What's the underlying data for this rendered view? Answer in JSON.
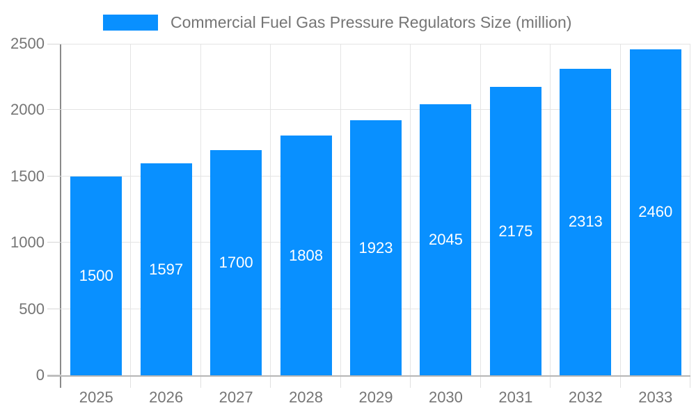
{
  "colors": {
    "bar": "#0990ff",
    "grid": "#e4e4e4",
    "y_axis_line": "#8a8a8a",
    "x_axis_line": "#b5b5b5",
    "y_tick": "#d6d6d6",
    "x_tick": "#e0e0e0",
    "axis_label_text": "#757575",
    "bar_label_text": "#ffffff",
    "background": "#ffffff"
  },
  "chart_data": {
    "type": "bar",
    "title": "Commercial Fuel Gas Pressure Regulators Size (million)",
    "categories": [
      "2025",
      "2026",
      "2027",
      "2028",
      "2029",
      "2030",
      "2031",
      "2032",
      "2033"
    ],
    "values": [
      1500,
      1597,
      1700,
      1808,
      1923,
      2045,
      2175,
      2313,
      2460
    ],
    "xlabel": "",
    "ylabel": "",
    "ylim": [
      0,
      2500
    ],
    "yticks": [
      0,
      500,
      1000,
      1500,
      2000,
      2500
    ],
    "grid": true,
    "legend_position": "top",
    "value_labels": "inside-center"
  }
}
